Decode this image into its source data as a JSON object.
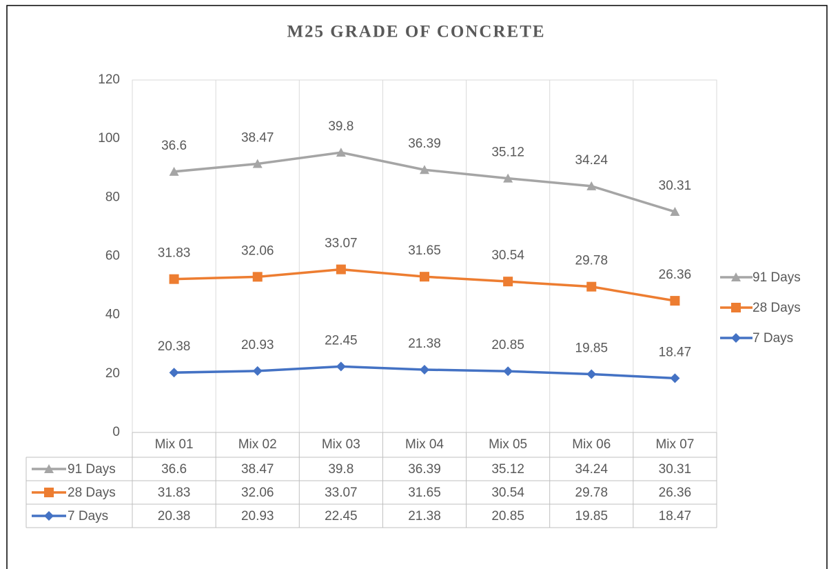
{
  "chart_data": {
    "type": "line",
    "stacked": true,
    "title": "M25 GRADE OF CONCRETE",
    "categories": [
      "Mix 01",
      "Mix 02",
      "Mix 03",
      "Mix 04",
      "Mix 05",
      "Mix 06",
      "Mix 07"
    ],
    "series": [
      {
        "name": "7 Days",
        "color": "#4472c4",
        "marker": "diamond",
        "values": [
          20.38,
          20.93,
          22.45,
          21.38,
          20.85,
          19.85,
          18.47
        ]
      },
      {
        "name": "28 Days",
        "color": "#ed7d31",
        "marker": "square",
        "values": [
          31.83,
          32.06,
          33.07,
          31.65,
          30.54,
          29.78,
          26.36
        ]
      },
      {
        "name": "91 Days",
        "color": "#a5a5a5",
        "marker": "triangle",
        "values": [
          36.6,
          38.47,
          39.8,
          36.39,
          35.12,
          34.24,
          30.31
        ]
      }
    ],
    "ylim": [
      0,
      120
    ],
    "yticks": [
      0,
      20,
      40,
      60,
      80,
      100,
      120
    ],
    "legend": "right",
    "data_table": true
  }
}
